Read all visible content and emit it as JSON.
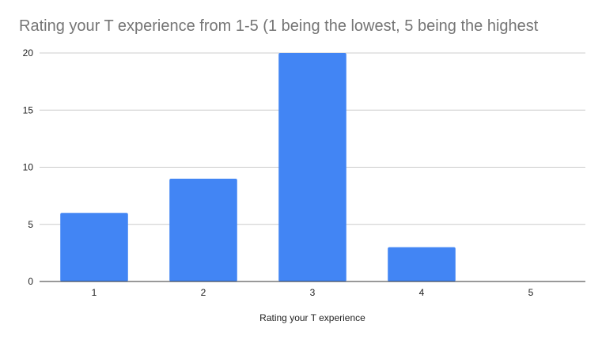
{
  "chart_data": {
    "type": "bar",
    "title": "Rating your T experience from 1-5 (1 being the lowest, 5 being the highest",
    "xlabel": "Rating your T experience",
    "ylabel": "",
    "categories": [
      "1",
      "2",
      "3",
      "4",
      "5"
    ],
    "values": [
      6,
      9,
      20,
      3,
      0
    ],
    "ylim": [
      0,
      20
    ],
    "yticks": [
      "0",
      "5",
      "10",
      "15",
      "20"
    ],
    "grid": true,
    "legend": "none",
    "bar_color": "#4285f4",
    "gridline_color": "#cccccc",
    "baseline_color": "#333333"
  }
}
